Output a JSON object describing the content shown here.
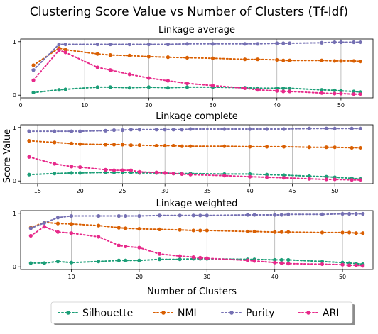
{
  "chart_data": {
    "type": "line",
    "title": "Clustering Score Value vs Number of Clusters (Tf-Idf)",
    "xlabel": "Number of Clusters",
    "ylabel": "Score Value",
    "legend": {
      "placement": "bottom-center",
      "entries": [
        "Silhouette",
        "NMI",
        "Purity",
        "ARI"
      ]
    },
    "grid": "vertical",
    "colors": {
      "Silhouette": "#1b9e77",
      "NMI": "#d95f02",
      "Purity": "#7570b3",
      "ARI": "#e7298a"
    },
    "subplots": [
      {
        "title": "Linkage average",
        "xlim": [
          0,
          55
        ],
        "ylim": [
          -0.05,
          1.05
        ],
        "xticks": [
          0,
          10,
          20,
          30,
          40,
          50
        ],
        "yticks": [
          0,
          1
        ],
        "x": [
          2,
          6,
          7,
          12,
          14,
          17,
          20,
          23,
          26,
          30,
          35,
          37,
          40,
          41,
          42,
          47,
          49,
          50,
          52,
          53
        ],
        "series": [
          {
            "name": "Silhouette",
            "values": [
              0.05,
              0.1,
              0.11,
              0.15,
              0.15,
              0.14,
              0.15,
              0.14,
              0.15,
              0.15,
              0.14,
              0.13,
              0.13,
              0.13,
              0.13,
              0.1,
              0.09,
              0.08,
              0.07,
              0.06
            ]
          },
          {
            "name": "NMI",
            "values": [
              0.56,
              0.88,
              0.85,
              0.77,
              0.75,
              0.74,
              0.72,
              0.71,
              0.7,
              0.69,
              0.67,
              0.67,
              0.66,
              0.65,
              0.65,
              0.65,
              0.64,
              0.64,
              0.64,
              0.63
            ]
          },
          {
            "name": "Purity",
            "values": [
              0.47,
              0.95,
              0.95,
              0.95,
              0.95,
              0.95,
              0.95,
              0.95,
              0.96,
              0.96,
              0.96,
              0.96,
              0.97,
              0.97,
              0.97,
              0.98,
              0.99,
              0.99,
              0.99,
              0.99
            ]
          },
          {
            "name": "ARI",
            "values": [
              0.28,
              0.84,
              0.8,
              0.52,
              0.47,
              0.39,
              0.32,
              0.27,
              0.22,
              0.18,
              0.13,
              0.1,
              0.08,
              0.07,
              0.07,
              0.04,
              0.03,
              0.03,
              0.02,
              0.02
            ]
          }
        ]
      },
      {
        "title": "Linkage complete",
        "xlim": [
          13,
          54.5
        ],
        "ylim": [
          -0.05,
          1.05
        ],
        "xticks": [
          15,
          20,
          25,
          30,
          35,
          40,
          45,
          50
        ],
        "yticks": [
          0,
          1
        ],
        "x": [
          14,
          17,
          19,
          20,
          23,
          24,
          25,
          26,
          27,
          29,
          30,
          31,
          32,
          33,
          37,
          40,
          42,
          44,
          47,
          49,
          50,
          52,
          53
        ],
        "series": [
          {
            "name": "Silhouette",
            "values": [
              0.12,
              0.14,
              0.15,
              0.15,
              0.16,
              0.16,
              0.16,
              0.16,
              0.15,
              0.15,
              0.15,
              0.14,
              0.14,
              0.14,
              0.13,
              0.13,
              0.12,
              0.11,
              0.09,
              0.08,
              0.07,
              0.05,
              0.04
            ]
          },
          {
            "name": "NMI",
            "values": [
              0.75,
              0.72,
              0.7,
              0.69,
              0.68,
              0.68,
              0.68,
              0.67,
              0.67,
              0.66,
              0.66,
              0.66,
              0.65,
              0.65,
              0.65,
              0.64,
              0.64,
              0.64,
              0.63,
              0.63,
              0.63,
              0.62,
              0.62
            ]
          },
          {
            "name": "Purity",
            "values": [
              0.93,
              0.93,
              0.93,
              0.93,
              0.94,
              0.95,
              0.95,
              0.96,
              0.96,
              0.96,
              0.96,
              0.96,
              0.96,
              0.97,
              0.97,
              0.97,
              0.97,
              0.97,
              0.98,
              0.98,
              0.98,
              0.98,
              0.98
            ]
          },
          {
            "name": "ARI",
            "values": [
              0.45,
              0.32,
              0.27,
              0.26,
              0.21,
              0.2,
              0.2,
              0.2,
              0.17,
              0.16,
              0.15,
              0.14,
              0.13,
              0.12,
              0.1,
              0.08,
              0.07,
              0.06,
              0.04,
              0.03,
              0.03,
              0.02,
              0.02
            ]
          }
        ]
      },
      {
        "title": "Linkage weighted",
        "xlim": [
          2.5,
          54.5
        ],
        "ylim": [
          -0.05,
          1.05
        ],
        "xticks": [
          10,
          20,
          30,
          40,
          50
        ],
        "yticks": [
          0,
          1
        ],
        "x": [
          4,
          6,
          8,
          10,
          14,
          17,
          18,
          20,
          23,
          26,
          28,
          29,
          30,
          36,
          37,
          40,
          41,
          42,
          47,
          50,
          51,
          52,
          53
        ],
        "series": [
          {
            "name": "Silhouette",
            "values": [
              0.07,
              0.07,
              0.1,
              0.08,
              0.1,
              0.12,
              0.12,
              0.12,
              0.14,
              0.14,
              0.15,
              0.15,
              0.15,
              0.14,
              0.14,
              0.13,
              0.13,
              0.13,
              0.1,
              0.08,
              0.07,
              0.06,
              0.05
            ]
          },
          {
            "name": "NMI",
            "values": [
              0.73,
              0.83,
              0.81,
              0.8,
              0.77,
              0.73,
              0.72,
              0.71,
              0.7,
              0.69,
              0.68,
              0.68,
              0.68,
              0.66,
              0.66,
              0.65,
              0.65,
              0.65,
              0.64,
              0.64,
              0.64,
              0.63,
              0.63
            ]
          },
          {
            "name": "Purity",
            "values": [
              0.72,
              0.82,
              0.92,
              0.95,
              0.95,
              0.95,
              0.95,
              0.95,
              0.96,
              0.96,
              0.96,
              0.96,
              0.96,
              0.97,
              0.97,
              0.97,
              0.97,
              0.98,
              0.98,
              0.99,
              0.99,
              0.99,
              0.99
            ]
          },
          {
            "name": "ARI",
            "values": [
              0.58,
              0.75,
              0.65,
              0.63,
              0.56,
              0.4,
              0.38,
              0.36,
              0.24,
              0.2,
              0.18,
              0.17,
              0.16,
              0.12,
              0.11,
              0.08,
              0.07,
              0.06,
              0.05,
              0.04,
              0.03,
              0.03,
              0.02
            ]
          }
        ]
      }
    ]
  }
}
